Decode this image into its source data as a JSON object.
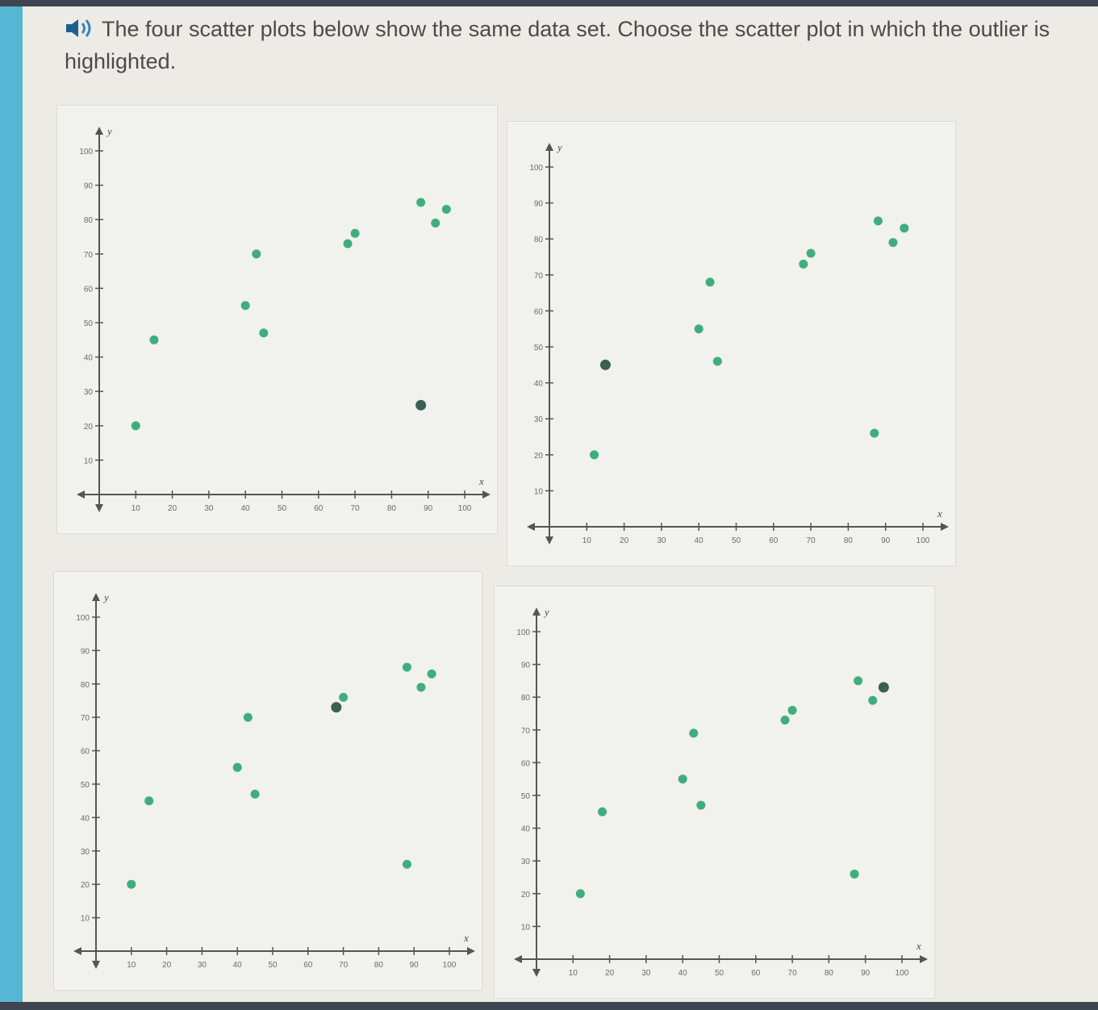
{
  "question": {
    "text": "The four scatter plots below show the same data set. Choose the scatter plot in which the outlier is highlighted."
  },
  "icons": {
    "audio": "speaker-icon"
  },
  "colors": {
    "point": "#3fae7c",
    "highlight": "#3a5f55",
    "axis": "#555555"
  },
  "chart_data": [
    {
      "type": "scatter",
      "xlabel": "x",
      "ylabel": "y",
      "xlim": [
        0,
        100
      ],
      "ylim": [
        0,
        100
      ],
      "x_ticks": [
        "10",
        "20",
        "30",
        "40",
        "50",
        "60",
        "70",
        "80",
        "90",
        "100"
      ],
      "y_ticks": [
        "10",
        "20",
        "30",
        "40",
        "50",
        "60",
        "70",
        "80",
        "90",
        "100"
      ],
      "points": [
        [
          10,
          20
        ],
        [
          15,
          45
        ],
        [
          40,
          55
        ],
        [
          43,
          70
        ],
        [
          45,
          47
        ],
        [
          68,
          73
        ],
        [
          70,
          76
        ],
        [
          88,
          85
        ],
        [
          92,
          79
        ],
        [
          95,
          83
        ]
      ],
      "highlighted": [
        [
          88,
          26
        ]
      ]
    },
    {
      "type": "scatter",
      "xlabel": "x",
      "ylabel": "y",
      "xlim": [
        0,
        100
      ],
      "ylim": [
        0,
        100
      ],
      "x_ticks": [
        "10",
        "20",
        "30",
        "40",
        "50",
        "60",
        "70",
        "80",
        "90",
        "100"
      ],
      "y_ticks": [
        "10",
        "20",
        "30",
        "40",
        "50",
        "60",
        "70",
        "80",
        "90",
        "100"
      ],
      "points": [
        [
          12,
          20
        ],
        [
          40,
          55
        ],
        [
          43,
          68
        ],
        [
          45,
          46
        ],
        [
          68,
          73
        ],
        [
          70,
          76
        ],
        [
          88,
          85
        ],
        [
          92,
          79
        ],
        [
          95,
          83
        ],
        [
          87,
          26
        ]
      ],
      "highlighted": [
        [
          15,
          45
        ]
      ]
    },
    {
      "type": "scatter",
      "xlabel": "x",
      "ylabel": "y",
      "xlim": [
        0,
        100
      ],
      "ylim": [
        0,
        100
      ],
      "x_ticks": [
        "10",
        "20",
        "30",
        "40",
        "50",
        "60",
        "70",
        "80",
        "90",
        "100"
      ],
      "y_ticks": [
        "10",
        "20",
        "30",
        "40",
        "50",
        "60",
        "70",
        "80",
        "90",
        "100"
      ],
      "points": [
        [
          10,
          20
        ],
        [
          15,
          45
        ],
        [
          40,
          55
        ],
        [
          43,
          70
        ],
        [
          45,
          47
        ],
        [
          70,
          76
        ],
        [
          88,
          85
        ],
        [
          92,
          79
        ],
        [
          95,
          83
        ],
        [
          88,
          26
        ]
      ],
      "highlighted": [
        [
          68,
          73
        ]
      ]
    },
    {
      "type": "scatter",
      "xlabel": "x",
      "ylabel": "y",
      "xlim": [
        0,
        100
      ],
      "ylim": [
        0,
        100
      ],
      "x_ticks": [
        "10",
        "20",
        "30",
        "40",
        "50",
        "60",
        "70",
        "80",
        "90",
        "100"
      ],
      "y_ticks": [
        "10",
        "20",
        "30",
        "40",
        "50",
        "60",
        "70",
        "80",
        "90",
        "100"
      ],
      "points": [
        [
          12,
          20
        ],
        [
          18,
          45
        ],
        [
          40,
          55
        ],
        [
          43,
          69
        ],
        [
          45,
          47
        ],
        [
          68,
          73
        ],
        [
          70,
          76
        ],
        [
          88,
          85
        ],
        [
          92,
          79
        ],
        [
          87,
          26
        ]
      ],
      "highlighted": [
        [
          95,
          83
        ]
      ]
    }
  ]
}
